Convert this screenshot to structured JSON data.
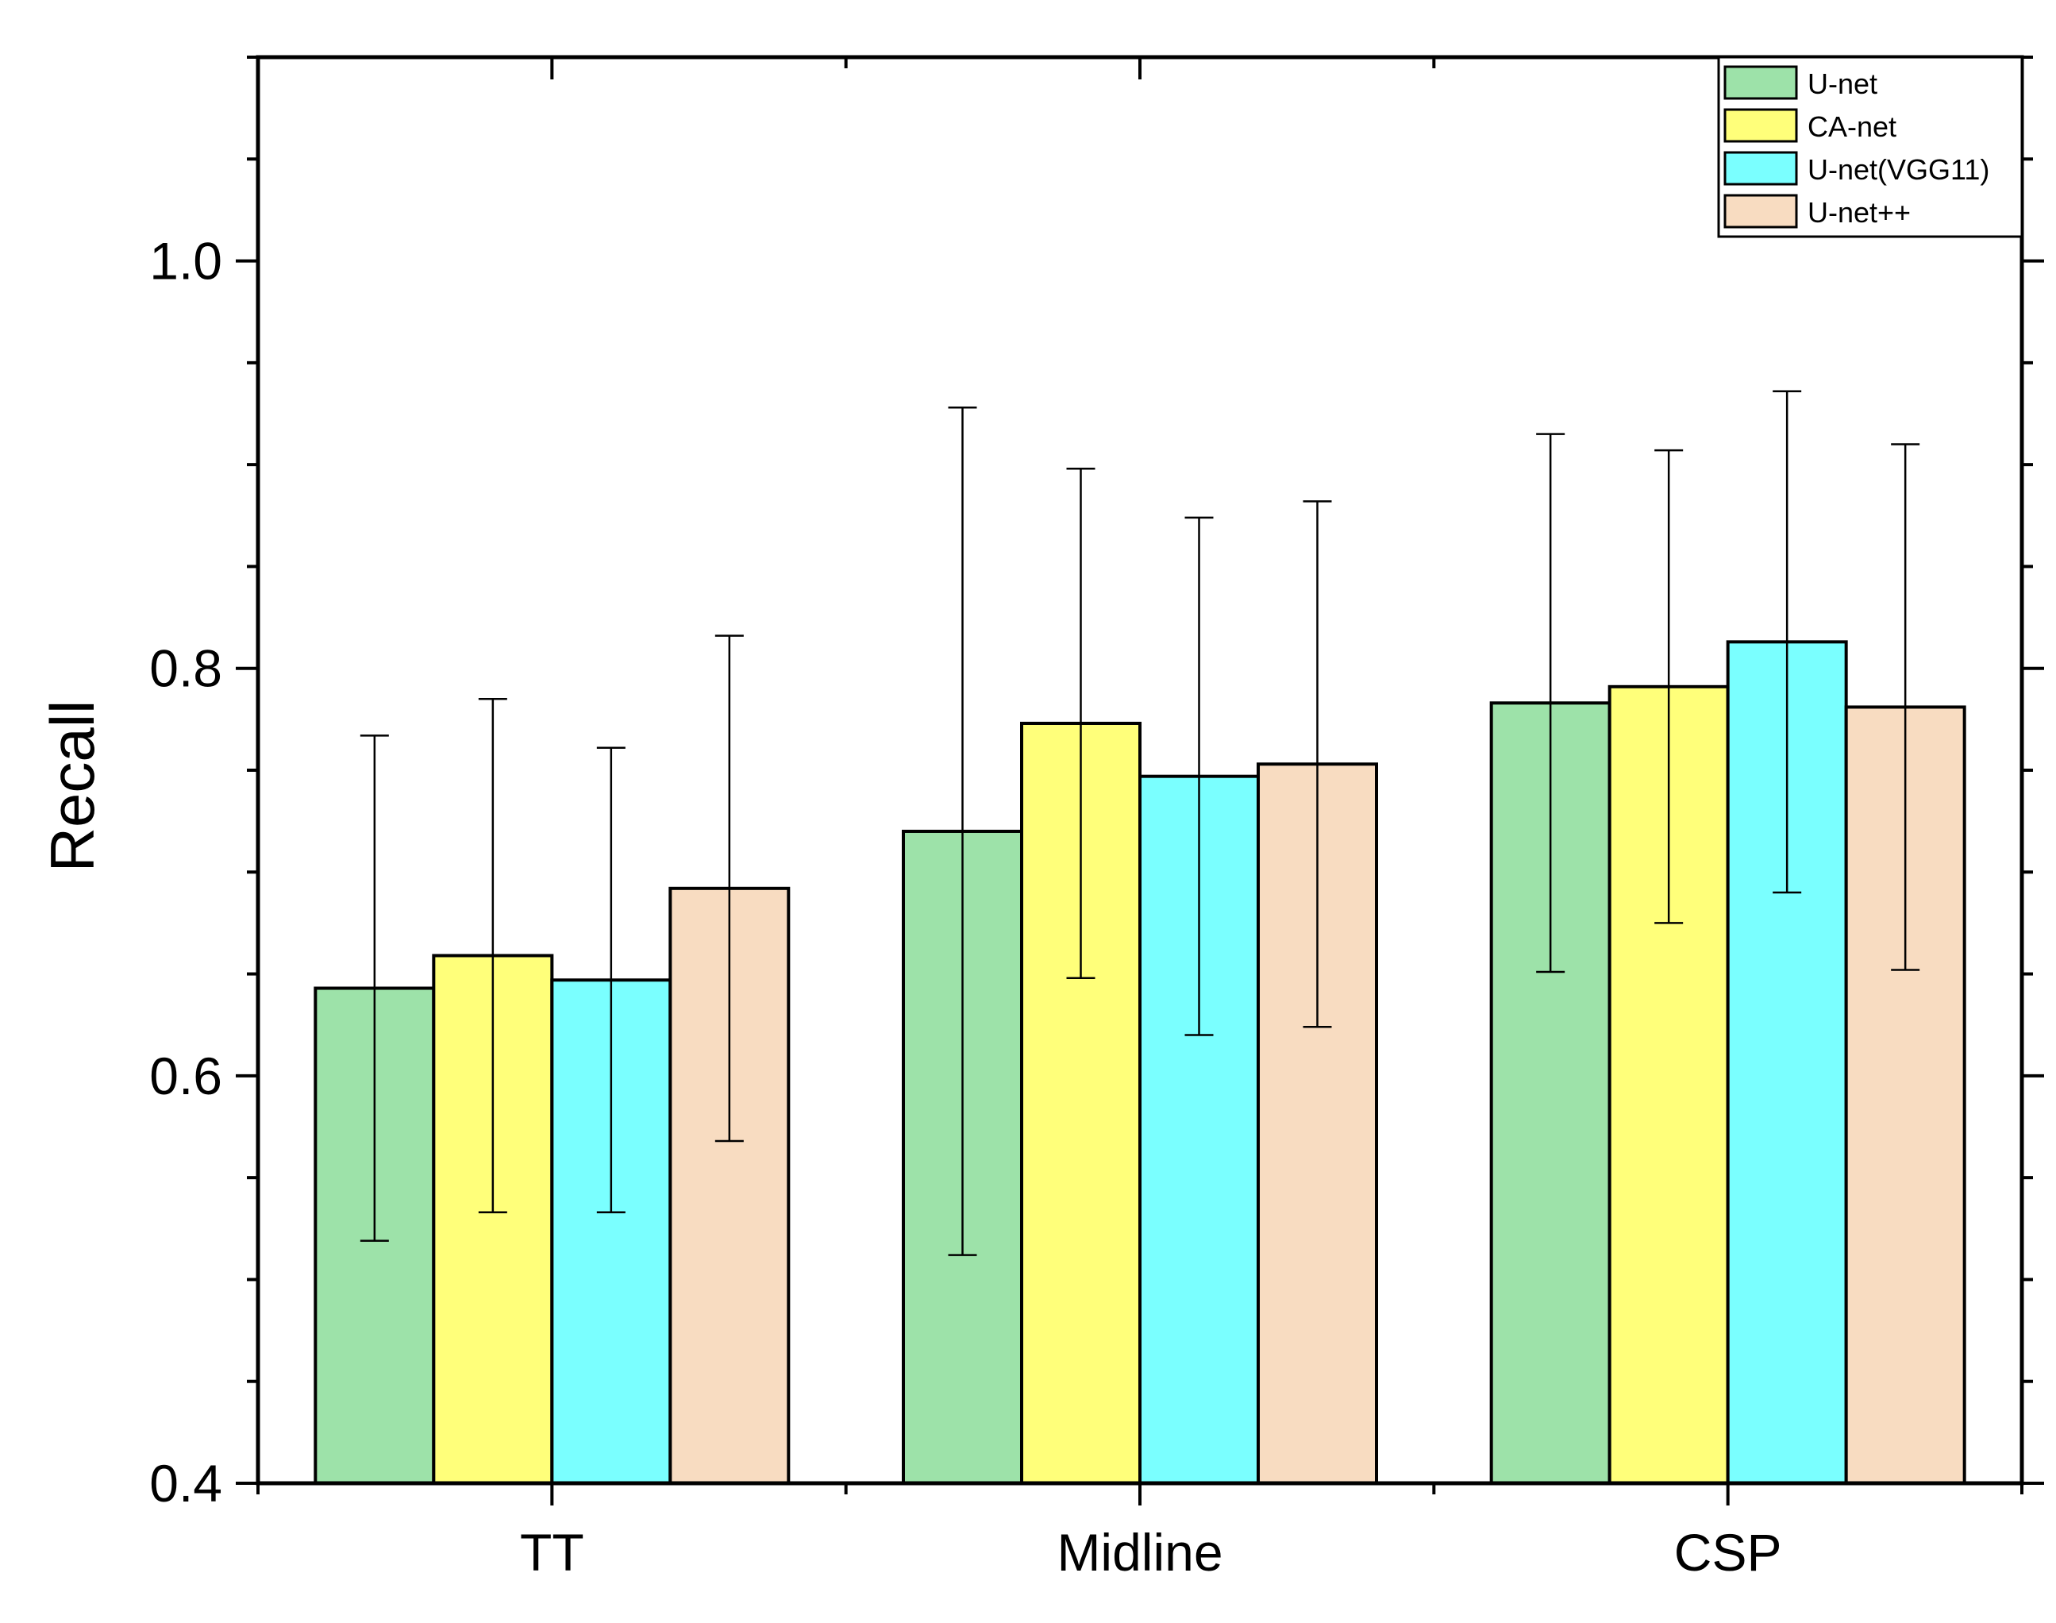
{
  "chart_data": {
    "type": "bar",
    "title": "",
    "xlabel": "",
    "ylabel": "Recall",
    "ylim": [
      0.4,
      1.1
    ],
    "yticks": [
      {
        "value": 0.4,
        "label": "0.4"
      },
      {
        "value": 0.6,
        "label": "0.6"
      },
      {
        "value": 0.8,
        "label": "0.8"
      },
      {
        "value": 1.0,
        "label": "1.0"
      }
    ],
    "categories": [
      "TT",
      "Midline",
      "CSP"
    ],
    "legend_position": "top-right",
    "error_bars": true,
    "series": [
      {
        "name": "U-net",
        "color": "#9de2a9",
        "values": [
          0.643,
          0.72,
          0.783
        ],
        "errors": [
          0.124,
          0.208,
          0.132
        ]
      },
      {
        "name": "CA-net",
        "color": "#ffff7a",
        "values": [
          0.659,
          0.773,
          0.791
        ],
        "errors": [
          0.126,
          0.125,
          0.116
        ]
      },
      {
        "name": "U-net(VGG11)",
        "color": "#7affff",
        "values": [
          0.647,
          0.747,
          0.813
        ],
        "errors": [
          0.114,
          0.127,
          0.123
        ]
      },
      {
        "name": "U-net++",
        "color": "#f8dcc1",
        "values": [
          0.692,
          0.753,
          0.781
        ],
        "errors": [
          0.124,
          0.129,
          0.129
        ]
      }
    ]
  }
}
